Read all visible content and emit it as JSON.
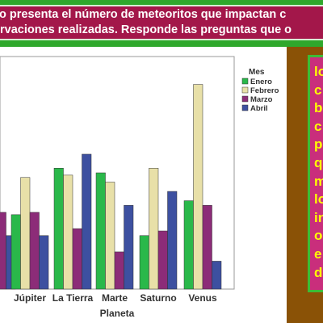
{
  "banner": {
    "line1": "o presenta el número de meteoritos que impactan  c",
    "line2": "rvaciones realizadas. Responde las preguntas que o"
  },
  "side_panel": {
    "words": [
      "lo",
      "c",
      "b",
      "c",
      "p",
      "q",
      "m",
      "lo",
      "in",
      "o",
      "e",
      "d"
    ]
  },
  "colors": {
    "Enero": "#2ab84a",
    "Febrero": "#e8e0a8",
    "Marzo": "#8c2c78",
    "Abril": "#3d50a0",
    "banner_bg": "#a3174a",
    "green_band": "#2fa82c",
    "brown": "#8a5206",
    "panel_bg": "#c92e7c",
    "panel_text": "#ffff00"
  },
  "chart_data": {
    "type": "bar",
    "xlabel": "Planeta",
    "legend_title": "Mes",
    "legend_position": "top-right",
    "categories": [
      "",
      "Júpiter",
      "La Tierra",
      "Marte",
      "Saturno",
      "Venus"
    ],
    "series": [
      {
        "name": "Enero",
        "values": [
          null,
          32,
          52,
          50,
          23,
          38
        ]
      },
      {
        "name": "Febrero",
        "values": [
          null,
          48,
          49,
          46,
          52,
          88
        ]
      },
      {
        "name": "Marzo",
        "values": [
          33,
          33,
          26,
          16,
          25,
          36
        ]
      },
      {
        "name": "Abril",
        "values": [
          23,
          23,
          58,
          36,
          42,
          12
        ]
      }
    ],
    "ylim": [
      0,
      100
    ]
  }
}
